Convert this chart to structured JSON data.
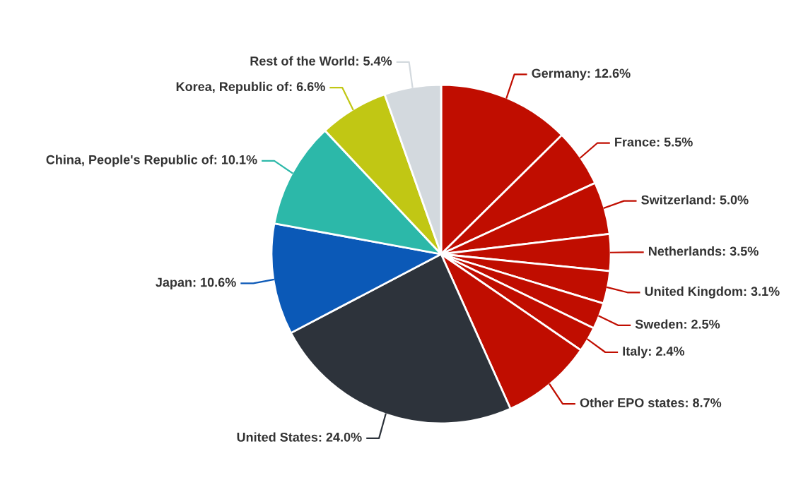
{
  "chart_data": {
    "type": "pie",
    "categories": [
      "Germany",
      "France",
      "Switzerland",
      "Netherlands",
      "United Kingdom",
      "Sweden",
      "Italy",
      "Other EPO states",
      "United States",
      "Japan",
      "China, People's Republic of",
      "Korea, Republic of",
      "Rest of the World"
    ],
    "values": [
      12.6,
      5.5,
      5.0,
      3.5,
      3.1,
      2.5,
      2.4,
      8.7,
      24.0,
      10.6,
      10.1,
      6.6,
      5.4
    ],
    "value_labels": [
      "12.6%",
      "5.5%",
      "5.0%",
      "3.5%",
      "3.1%",
      "2.5%",
      "2.4%",
      "8.7%",
      "24.0%",
      "10.6%",
      "10.1%",
      "6.6%",
      "5.4%"
    ],
    "colors": [
      "#c00d00",
      "#c00d00",
      "#c00d00",
      "#c00d00",
      "#c00d00",
      "#c00d00",
      "#c00d00",
      "#c00d00",
      "#2d333b",
      "#0b59b7",
      "#2cb8a9",
      "#c1c714",
      "#d3d9de"
    ],
    "legend": false
  }
}
